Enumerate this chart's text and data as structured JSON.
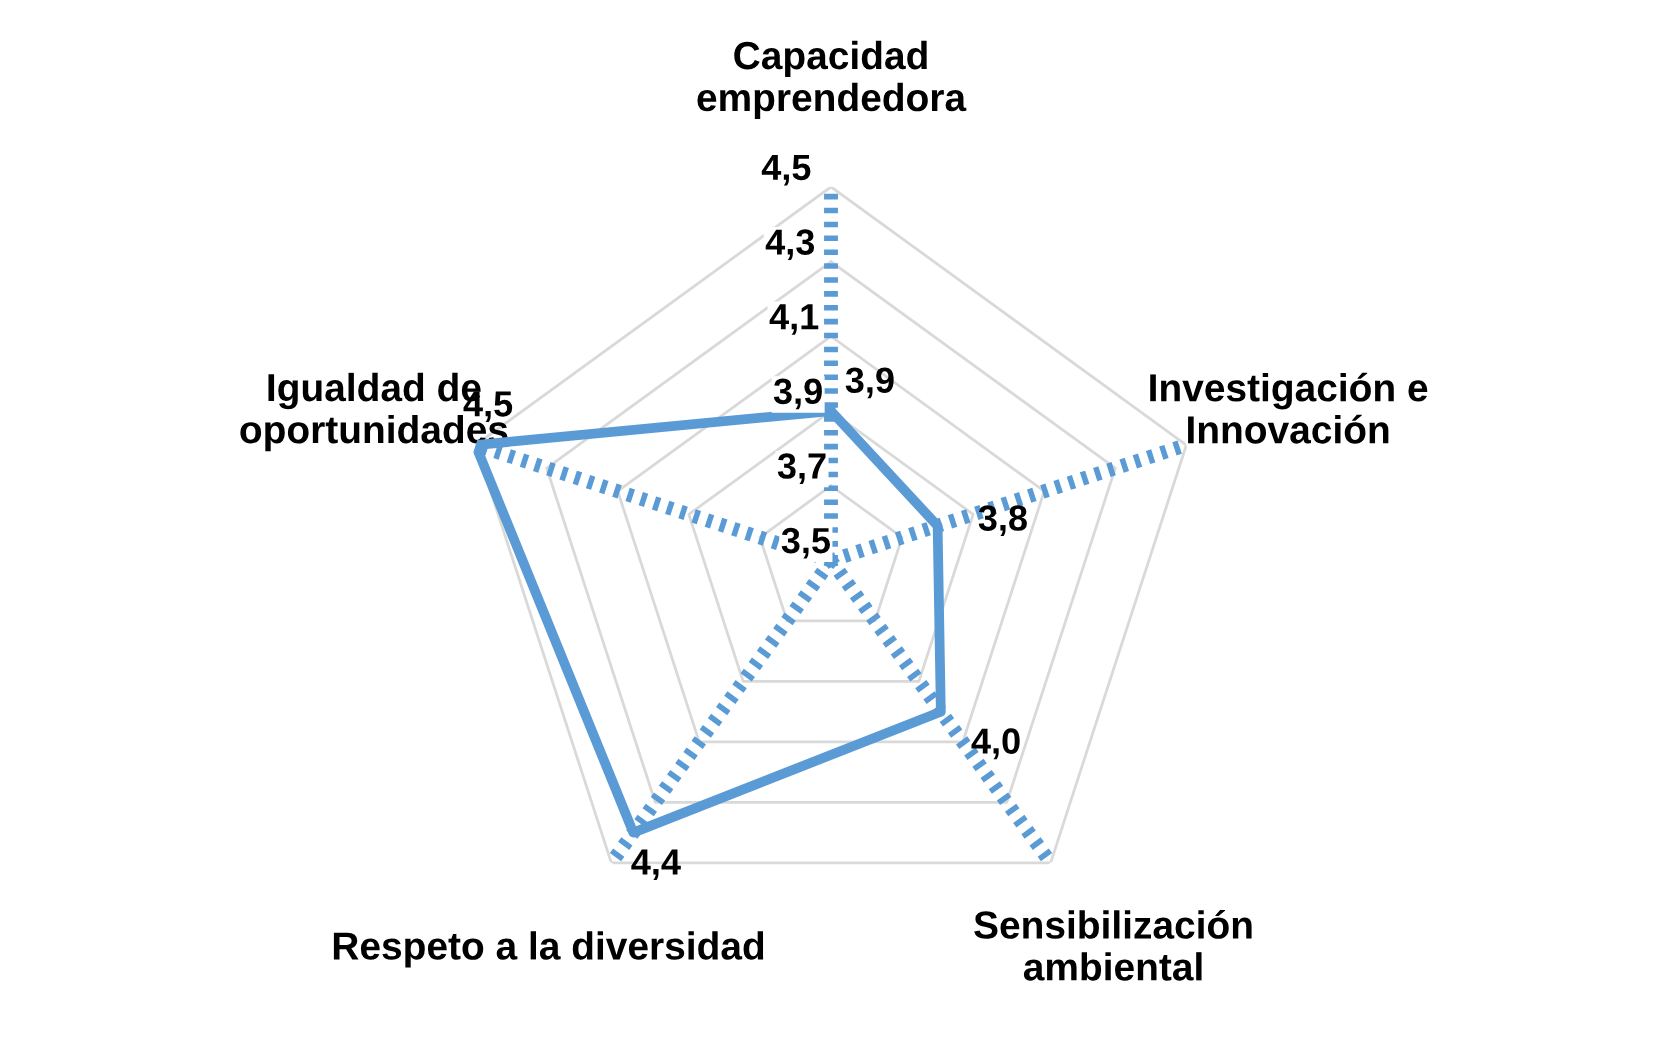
{
  "chart_data": {
    "type": "radar",
    "categories": [
      "Capacidad\nemprendedora",
      "Investigación e\nInnovación",
      "Sensibilización\nambiental",
      "Respeto a la diversidad",
      "Igualdad de\noportunidades"
    ],
    "series": [
      {
        "color": "#5b9bd5",
        "values": [
          3.9,
          3.8,
          4.0,
          4.4,
          4.5
        ],
        "value_labels": [
          "3,9",
          "3,8",
          "4,0",
          "4,4",
          "4,5"
        ]
      }
    ],
    "ylim": [
      3.5,
      4.5
    ],
    "yticks": [
      {
        "value": 3.5,
        "label": "3,5"
      },
      {
        "value": 3.7,
        "label": "3,7"
      },
      {
        "value": 3.9,
        "label": "3,9"
      },
      {
        "value": 4.1,
        "label": "4,1"
      },
      {
        "value": 4.3,
        "label": "4,3"
      },
      {
        "value": 4.5,
        "label": "4,5"
      }
    ],
    "grid": true,
    "marker": "none",
    "line_style": "solid"
  }
}
